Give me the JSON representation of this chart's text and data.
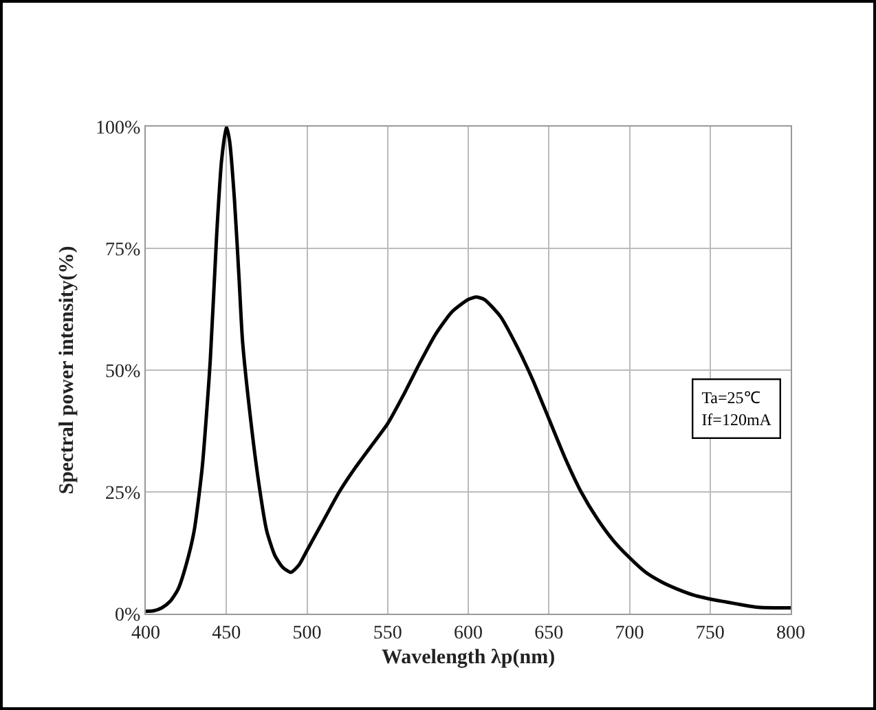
{
  "chart_data": {
    "type": "line",
    "xlabel": "Wavelength λp(nm)",
    "ylabel": "Spectral power intensity(%)",
    "x": [
      400,
      405,
      410,
      415,
      420,
      425,
      430,
      435,
      440,
      444,
      447,
      450,
      452,
      455,
      458,
      460,
      465,
      470,
      475,
      480,
      485,
      490,
      495,
      500,
      510,
      520,
      530,
      540,
      550,
      560,
      570,
      580,
      590,
      600,
      605,
      610,
      620,
      630,
      640,
      650,
      660,
      670,
      680,
      690,
      700,
      710,
      720,
      730,
      740,
      750,
      760,
      770,
      780,
      790,
      800
    ],
    "series": [
      {
        "color": "#000000",
        "values": [
          0.5,
          0.6,
          1.2,
          2.5,
          5,
          10,
          17,
          30,
          52,
          78,
          93,
          100,
          97,
          85,
          68,
          56,
          40,
          27,
          17,
          12,
          9.5,
          8.5,
          10,
          13,
          19,
          25,
          30,
          34.5,
          39,
          45,
          51.5,
          57.5,
          62,
          64.5,
          65,
          64.5,
          61,
          55,
          48,
          40,
          32,
          25,
          19.5,
          15,
          11.5,
          8.5,
          6.5,
          5,
          3.8,
          3,
          2.4,
          1.8,
          1.3,
          1.2,
          1.2
        ]
      }
    ],
    "xlim": [
      400,
      800
    ],
    "xticks": [
      400,
      450,
      500,
      550,
      600,
      650,
      700,
      750,
      800
    ],
    "ylim": [
      0,
      100
    ],
    "yticks": [
      {
        "value": 0,
        "label": "0%"
      },
      {
        "value": 25,
        "label": "25%"
      },
      {
        "value": 50,
        "label": "50%"
      },
      {
        "value": 75,
        "label": "75%"
      },
      {
        "value": 100,
        "label": "100%"
      }
    ],
    "grid": true,
    "marker": "none",
    "line_style": "solid",
    "annotations": [
      "Ta=25℃",
      "If=120mA"
    ]
  }
}
